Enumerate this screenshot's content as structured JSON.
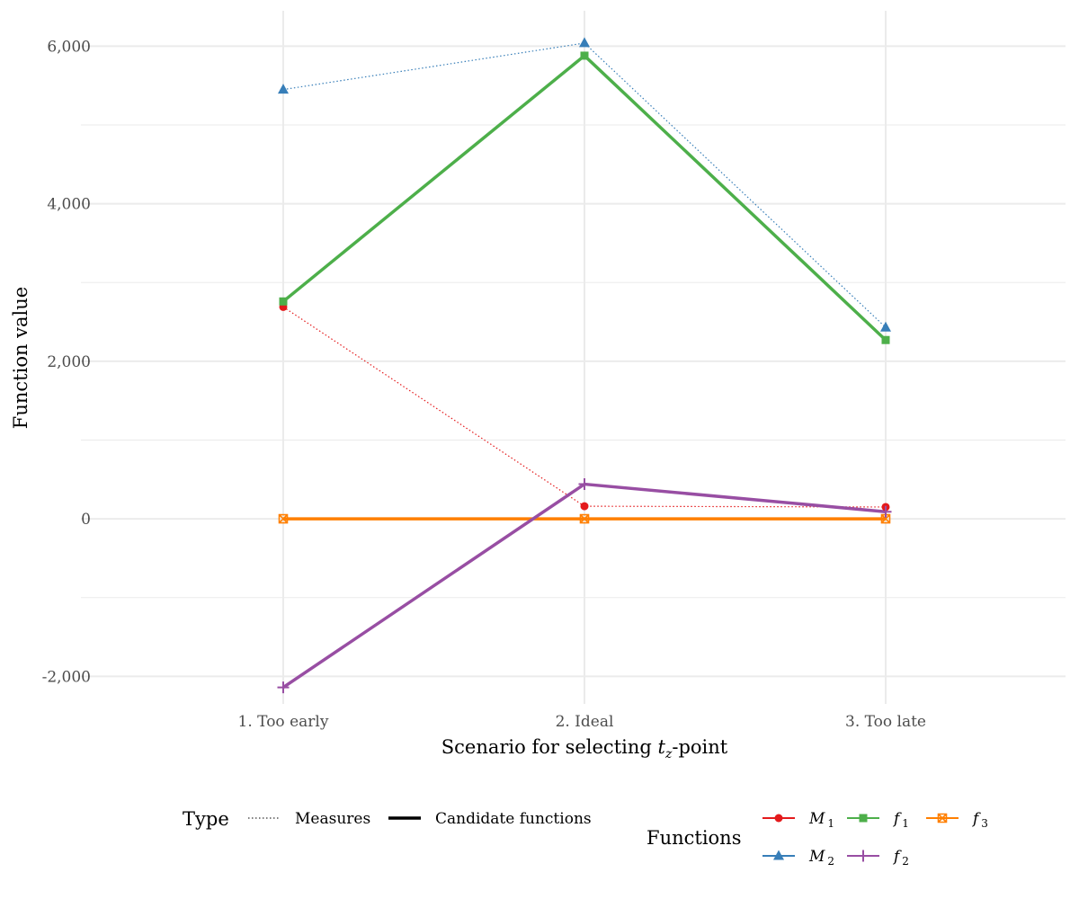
{
  "chart_data": {
    "type": "line",
    "title": "",
    "xlabel_prefix": "Scenario for selecting ",
    "xlabel_math_base": "t",
    "xlabel_math_sub": "z",
    "xlabel_suffix": "-point",
    "ylabel": "Function value",
    "categories": [
      "1. Too early",
      "2. Ideal",
      "3. Too late"
    ],
    "ylim": [
      -2350,
      6450
    ],
    "yticks": [
      -2000,
      0,
      2000,
      4000,
      6000
    ],
    "ytick_labels": [
      "-2,000",
      "0",
      "2,000",
      "4,000",
      "6,000"
    ],
    "grid": true,
    "series": [
      {
        "key": "M1",
        "base": "M",
        "sub": "1",
        "type": "Measures",
        "color": "#e41a1c",
        "marker": "circle",
        "values": [
          2690,
          160,
          150
        ]
      },
      {
        "key": "M2",
        "base": "M",
        "sub": "2",
        "type": "Measures",
        "color": "#377eb8",
        "marker": "triangle",
        "values": [
          5450,
          6040,
          2430
        ]
      },
      {
        "key": "f1",
        "base": "f",
        "sub": "1",
        "type": "Candidate functions",
        "color": "#4daf4a",
        "marker": "square",
        "values": [
          2760,
          5880,
          2270
        ]
      },
      {
        "key": "f2",
        "base": "f",
        "sub": "2",
        "type": "Candidate functions",
        "color": "#984ea3",
        "marker": "plus",
        "values": [
          -2140,
          440,
          90
        ]
      },
      {
        "key": "f3",
        "base": "f",
        "sub": "3",
        "type": "Candidate functions",
        "color": "#ff7f00",
        "marker": "boxcross",
        "values": [
          0,
          0,
          0
        ]
      }
    ],
    "legend": {
      "placement": "bottom",
      "type_title": "Type",
      "type_items": [
        "Measures",
        "Candidate functions"
      ],
      "functions_title": "Functions"
    }
  }
}
